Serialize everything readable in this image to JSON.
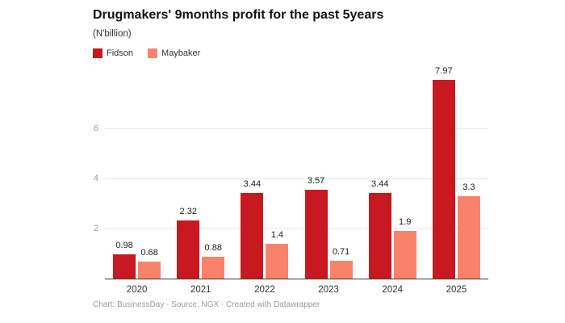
{
  "chart_data": {
    "type": "bar",
    "title": "Drugmakers' 9months profit for the past 5years",
    "subtitle": "(N'billion)",
    "categories": [
      "2020",
      "2021",
      "2022",
      "2023",
      "2024",
      "2025"
    ],
    "series": [
      {
        "name": "Fidson",
        "color": "#c7191f",
        "values": [
          0.98,
          2.32,
          3.44,
          3.57,
          3.44,
          7.97
        ]
      },
      {
        "name": "Maybaker",
        "color": "#f9836a",
        "values": [
          0.68,
          0.88,
          1.4,
          0.71,
          1.9,
          3.3
        ]
      }
    ],
    "ylim": [
      0,
      8
    ],
    "yticks": [
      2,
      4,
      6
    ],
    "grid": true,
    "legend_position": "top-left",
    "footer": "Chart: BusinessDay · Source: NGX · Created with Datawrapper"
  }
}
